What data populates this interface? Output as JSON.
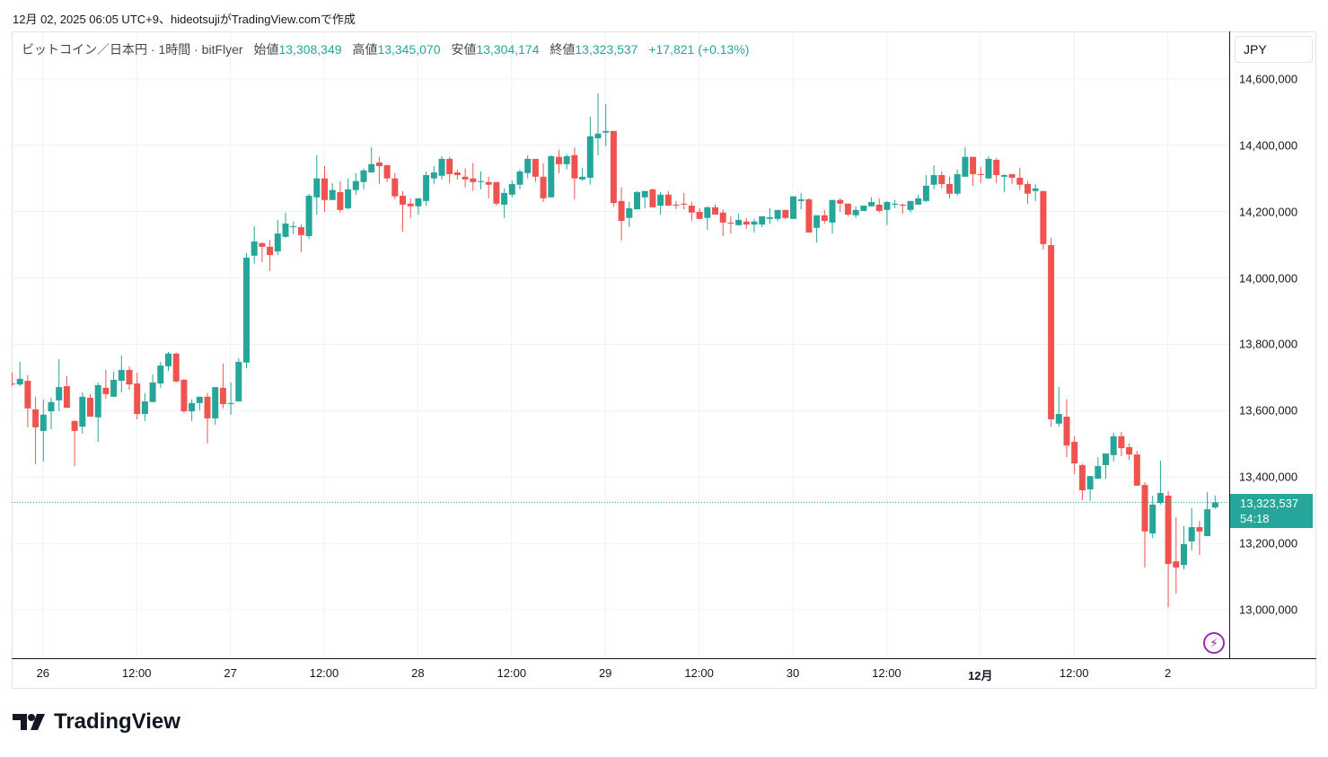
{
  "caption": "12月 02, 2025 06:05 UTC+9、hideotsujiがTradingView.comで作成",
  "legend": {
    "symbol": "ビットコイン／日本円 · 1時間 · bitFlyer",
    "open_label": "始値",
    "open": "13,308,349",
    "high_label": "高値",
    "high": "13,345,070",
    "low_label": "安値",
    "low": "13,304,174",
    "close_label": "終値",
    "close": "13,323,537",
    "change": "+17,821 (+0.13%)"
  },
  "currency_button": "JPY",
  "last_price": {
    "value": "13,323,537",
    "countdown": "54:18"
  },
  "logo_text": "TradingView",
  "colors": {
    "up": "#26a69a",
    "down": "#ef5350",
    "grid": "#edf1f5",
    "accent": "#9c27b0"
  },
  "icons": {
    "alert": "lightning-icon",
    "logo": "tradingview-logo-icon"
  },
  "chart_data": {
    "type": "candlestick",
    "interval": "1時間",
    "x_start": "2025-11-25 20:00",
    "ylim": [
      12854000,
      14743000
    ],
    "grid": true,
    "y_ticks": [
      {
        "value": 14600000,
        "label": "14,600,000"
      },
      {
        "value": 14400000,
        "label": "14,400,000"
      },
      {
        "value": 14200000,
        "label": "14,200,000"
      },
      {
        "value": 14000000,
        "label": "14,000,000"
      },
      {
        "value": 13800000,
        "label": "13,800,000"
      },
      {
        "value": 13600000,
        "label": "13,600,000"
      },
      {
        "value": 13400000,
        "label": "13,400,000"
      },
      {
        "value": 13200000,
        "label": "13,200,000"
      },
      {
        "value": 13000000,
        "label": "13,000,000"
      }
    ],
    "x_ticks": [
      "26",
      "12:00",
      "27",
      "12:00",
      "28",
      "12:00",
      "29",
      "12:00",
      "30",
      "12:00",
      "12月",
      "12:00",
      "2"
    ],
    "last_price": 13323537,
    "ohlc": [
      [
        13682000,
        13715000,
        13674000,
        13679000
      ],
      [
        13679000,
        13747000,
        13674000,
        13696000
      ],
      [
        13690000,
        13707000,
        13550000,
        13607000
      ],
      [
        13604000,
        13642000,
        13439000,
        13550000
      ],
      [
        13539000,
        13634000,
        13447000,
        13588000
      ],
      [
        13598000,
        13639000,
        13544000,
        13626000
      ],
      [
        13631000,
        13755000,
        13598000,
        13671000
      ],
      [
        13674000,
        13704000,
        13609000,
        13609000
      ],
      [
        13569000,
        13571000,
        13433000,
        13539000
      ],
      [
        13552000,
        13655000,
        13531000,
        13642000
      ],
      [
        13639000,
        13650000,
        13582000,
        13582000
      ],
      [
        13580000,
        13685000,
        13506000,
        13677000
      ],
      [
        13669000,
        13723000,
        13636000,
        13650000
      ],
      [
        13642000,
        13718000,
        13642000,
        13693000
      ],
      [
        13690000,
        13766000,
        13655000,
        13723000
      ],
      [
        13723000,
        13734000,
        13663000,
        13679000
      ],
      [
        13682000,
        13715000,
        13574000,
        13590000
      ],
      [
        13590000,
        13653000,
        13569000,
        13628000
      ],
      [
        13626000,
        13709000,
        13626000,
        13685000
      ],
      [
        13682000,
        13747000,
        13669000,
        13736000
      ],
      [
        13734000,
        13777000,
        13720000,
        13772000
      ],
      [
        13772000,
        13775000,
        13685000,
        13688000
      ],
      [
        13693000,
        13696000,
        13593000,
        13598000
      ],
      [
        13598000,
        13634000,
        13569000,
        13623000
      ],
      [
        13623000,
        13642000,
        13601000,
        13642000
      ],
      [
        13642000,
        13653000,
        13501000,
        13577000
      ],
      [
        13577000,
        13671000,
        13558000,
        13671000
      ],
      [
        13669000,
        13742000,
        13607000,
        13620000
      ],
      [
        13620000,
        13685000,
        13588000,
        13623000
      ],
      [
        13628000,
        13758000,
        13628000,
        13747000
      ],
      [
        13745000,
        14075000,
        13728000,
        14061000
      ],
      [
        14067000,
        14156000,
        14042000,
        14110000
      ],
      [
        14105000,
        14107000,
        14048000,
        14094000
      ],
      [
        14094000,
        14115000,
        14021000,
        14069000
      ],
      [
        14080000,
        14175000,
        14069000,
        14134000
      ],
      [
        14124000,
        14197000,
        14121000,
        14164000
      ],
      [
        14153000,
        14170000,
        14132000,
        14156000
      ],
      [
        14153000,
        14161000,
        14078000,
        14129000
      ],
      [
        14126000,
        14253000,
        14118000,
        14248000
      ],
      [
        14243000,
        14370000,
        14191000,
        14300000
      ],
      [
        14300000,
        14337000,
        14199000,
        14235000
      ],
      [
        14235000,
        14286000,
        14235000,
        14265000
      ],
      [
        14259000,
        14292000,
        14197000,
        14205000
      ],
      [
        14210000,
        14300000,
        14207000,
        14267000
      ],
      [
        14265000,
        14316000,
        14251000,
        14292000
      ],
      [
        14289000,
        14330000,
        14267000,
        14324000
      ],
      [
        14318000,
        14394000,
        14318000,
        14343000
      ],
      [
        14348000,
        14365000,
        14283000,
        14337000
      ],
      [
        14340000,
        14340000,
        14289000,
        14300000
      ],
      [
        14300000,
        14316000,
        14237000,
        14246000
      ],
      [
        14248000,
        14262000,
        14140000,
        14221000
      ],
      [
        14224000,
        14240000,
        14181000,
        14216000
      ],
      [
        14216000,
        14240000,
        14191000,
        14240000
      ],
      [
        14232000,
        14321000,
        14218000,
        14310000
      ],
      [
        14300000,
        14337000,
        14283000,
        14318000
      ],
      [
        14308000,
        14367000,
        14297000,
        14359000
      ],
      [
        14359000,
        14365000,
        14286000,
        14313000
      ],
      [
        14318000,
        14327000,
        14297000,
        14310000
      ],
      [
        14305000,
        14330000,
        14273000,
        14297000
      ],
      [
        14300000,
        14346000,
        14262000,
        14289000
      ],
      [
        14289000,
        14321000,
        14267000,
        14292000
      ],
      [
        14289000,
        14305000,
        14240000,
        14281000
      ],
      [
        14289000,
        14289000,
        14218000,
        14224000
      ],
      [
        14221000,
        14270000,
        14181000,
        14256000
      ],
      [
        14251000,
        14294000,
        14243000,
        14283000
      ],
      [
        14281000,
        14327000,
        14267000,
        14321000
      ],
      [
        14316000,
        14370000,
        14300000,
        14359000
      ],
      [
        14359000,
        14359000,
        14289000,
        14305000
      ],
      [
        14305000,
        14346000,
        14229000,
        14240000
      ],
      [
        14243000,
        14370000,
        14243000,
        14367000
      ],
      [
        14365000,
        14386000,
        14316000,
        14343000
      ],
      [
        14343000,
        14373000,
        14327000,
        14367000
      ],
      [
        14370000,
        14394000,
        14237000,
        14300000
      ],
      [
        14297000,
        14332000,
        14292000,
        14305000
      ],
      [
        14302000,
        14486000,
        14281000,
        14427000
      ],
      [
        14421000,
        14557000,
        14370000,
        14435000
      ],
      [
        14438000,
        14524000,
        14397000,
        14443000
      ],
      [
        14443000,
        14443000,
        14216000,
        14226000
      ],
      [
        14232000,
        14273000,
        14113000,
        14172000
      ],
      [
        14181000,
        14229000,
        14153000,
        14210000
      ],
      [
        14207000,
        14262000,
        14207000,
        14259000
      ],
      [
        14243000,
        14262000,
        14210000,
        14262000
      ],
      [
        14267000,
        14270000,
        14213000,
        14213000
      ],
      [
        14218000,
        14259000,
        14191000,
        14251000
      ],
      [
        14251000,
        14262000,
        14218000,
        14218000
      ],
      [
        14221000,
        14232000,
        14207000,
        14218000
      ],
      [
        14224000,
        14256000,
        14207000,
        14221000
      ],
      [
        14218000,
        14229000,
        14172000,
        14197000
      ],
      [
        14199000,
        14210000,
        14178000,
        14178000
      ],
      [
        14181000,
        14216000,
        14145000,
        14213000
      ],
      [
        14213000,
        14221000,
        14191000,
        14191000
      ],
      [
        14197000,
        14207000,
        14126000,
        14167000
      ],
      [
        14167000,
        14186000,
        14134000,
        14164000
      ],
      [
        14159000,
        14194000,
        14159000,
        14175000
      ],
      [
        14170000,
        14181000,
        14148000,
        14161000
      ],
      [
        14161000,
        14178000,
        14137000,
        14170000
      ],
      [
        14161000,
        14186000,
        14153000,
        14186000
      ],
      [
        14178000,
        14210000,
        14164000,
        14183000
      ],
      [
        14178000,
        14205000,
        14170000,
        14205000
      ],
      [
        14205000,
        14205000,
        14178000,
        14181000
      ],
      [
        14178000,
        14246000,
        14178000,
        14246000
      ],
      [
        14232000,
        14256000,
        14207000,
        14237000
      ],
      [
        14237000,
        14240000,
        14137000,
        14137000
      ],
      [
        14151000,
        14189000,
        14107000,
        14189000
      ],
      [
        14189000,
        14205000,
        14164000,
        14172000
      ],
      [
        14167000,
        14235000,
        14134000,
        14235000
      ],
      [
        14235000,
        14240000,
        14199000,
        14224000
      ],
      [
        14224000,
        14224000,
        14186000,
        14191000
      ],
      [
        14189000,
        14216000,
        14181000,
        14205000
      ],
      [
        14202000,
        14218000,
        14202000,
        14218000
      ],
      [
        14216000,
        14243000,
        14216000,
        14229000
      ],
      [
        14221000,
        14240000,
        14197000,
        14202000
      ],
      [
        14205000,
        14232000,
        14159000,
        14229000
      ],
      [
        14221000,
        14235000,
        14210000,
        14224000
      ],
      [
        14221000,
        14224000,
        14194000,
        14218000
      ],
      [
        14205000,
        14232000,
        14197000,
        14232000
      ],
      [
        14221000,
        14251000,
        14221000,
        14240000
      ],
      [
        14232000,
        14310000,
        14229000,
        14278000
      ],
      [
        14281000,
        14340000,
        14267000,
        14310000
      ],
      [
        14310000,
        14321000,
        14270000,
        14283000
      ],
      [
        14283000,
        14305000,
        14240000,
        14254000
      ],
      [
        14254000,
        14327000,
        14248000,
        14313000
      ],
      [
        14305000,
        14394000,
        14305000,
        14365000
      ],
      [
        14365000,
        14365000,
        14278000,
        14313000
      ],
      [
        14313000,
        14335000,
        14286000,
        14310000
      ],
      [
        14300000,
        14367000,
        14300000,
        14359000
      ],
      [
        14356000,
        14362000,
        14286000,
        14310000
      ],
      [
        14305000,
        14313000,
        14259000,
        14310000
      ],
      [
        14313000,
        14313000,
        14283000,
        14302000
      ],
      [
        14302000,
        14332000,
        14265000,
        14281000
      ],
      [
        14283000,
        14292000,
        14224000,
        14254000
      ],
      [
        14262000,
        14283000,
        14232000,
        14270000
      ],
      [
        14262000,
        14262000,
        14086000,
        14102000
      ],
      [
        14099000,
        14121000,
        13552000,
        13574000
      ],
      [
        13561000,
        13671000,
        13552000,
        13590000
      ],
      [
        13582000,
        13634000,
        13460000,
        13495000
      ],
      [
        13506000,
        13523000,
        13409000,
        13441000
      ],
      [
        13436000,
        13441000,
        13330000,
        13360000
      ],
      [
        13363000,
        13403000,
        13328000,
        13403000
      ],
      [
        13395000,
        13460000,
        13395000,
        13433000
      ],
      [
        13436000,
        13471000,
        13395000,
        13471000
      ],
      [
        13466000,
        13533000,
        13447000,
        13523000
      ],
      [
        13523000,
        13536000,
        13463000,
        13487000
      ],
      [
        13490000,
        13501000,
        13452000,
        13468000
      ],
      [
        13468000,
        13479000,
        13374000,
        13374000
      ],
      [
        13376000,
        13384000,
        13127000,
        13236000
      ],
      [
        13230000,
        13344000,
        13216000,
        13317000
      ],
      [
        13322000,
        13449000,
        13317000,
        13352000
      ],
      [
        13344000,
        13357000,
        13008000,
        13138000
      ],
      [
        13146000,
        13279000,
        13049000,
        13127000
      ],
      [
        13135000,
        13252000,
        13122000,
        13198000
      ],
      [
        13206000,
        13306000,
        13179000,
        13249000
      ],
      [
        13249000,
        13268000,
        13165000,
        13236000
      ],
      [
        13222000,
        13355000,
        13222000,
        13303000
      ],
      [
        13308349,
        13345070,
        13304174,
        13323537
      ]
    ]
  }
}
